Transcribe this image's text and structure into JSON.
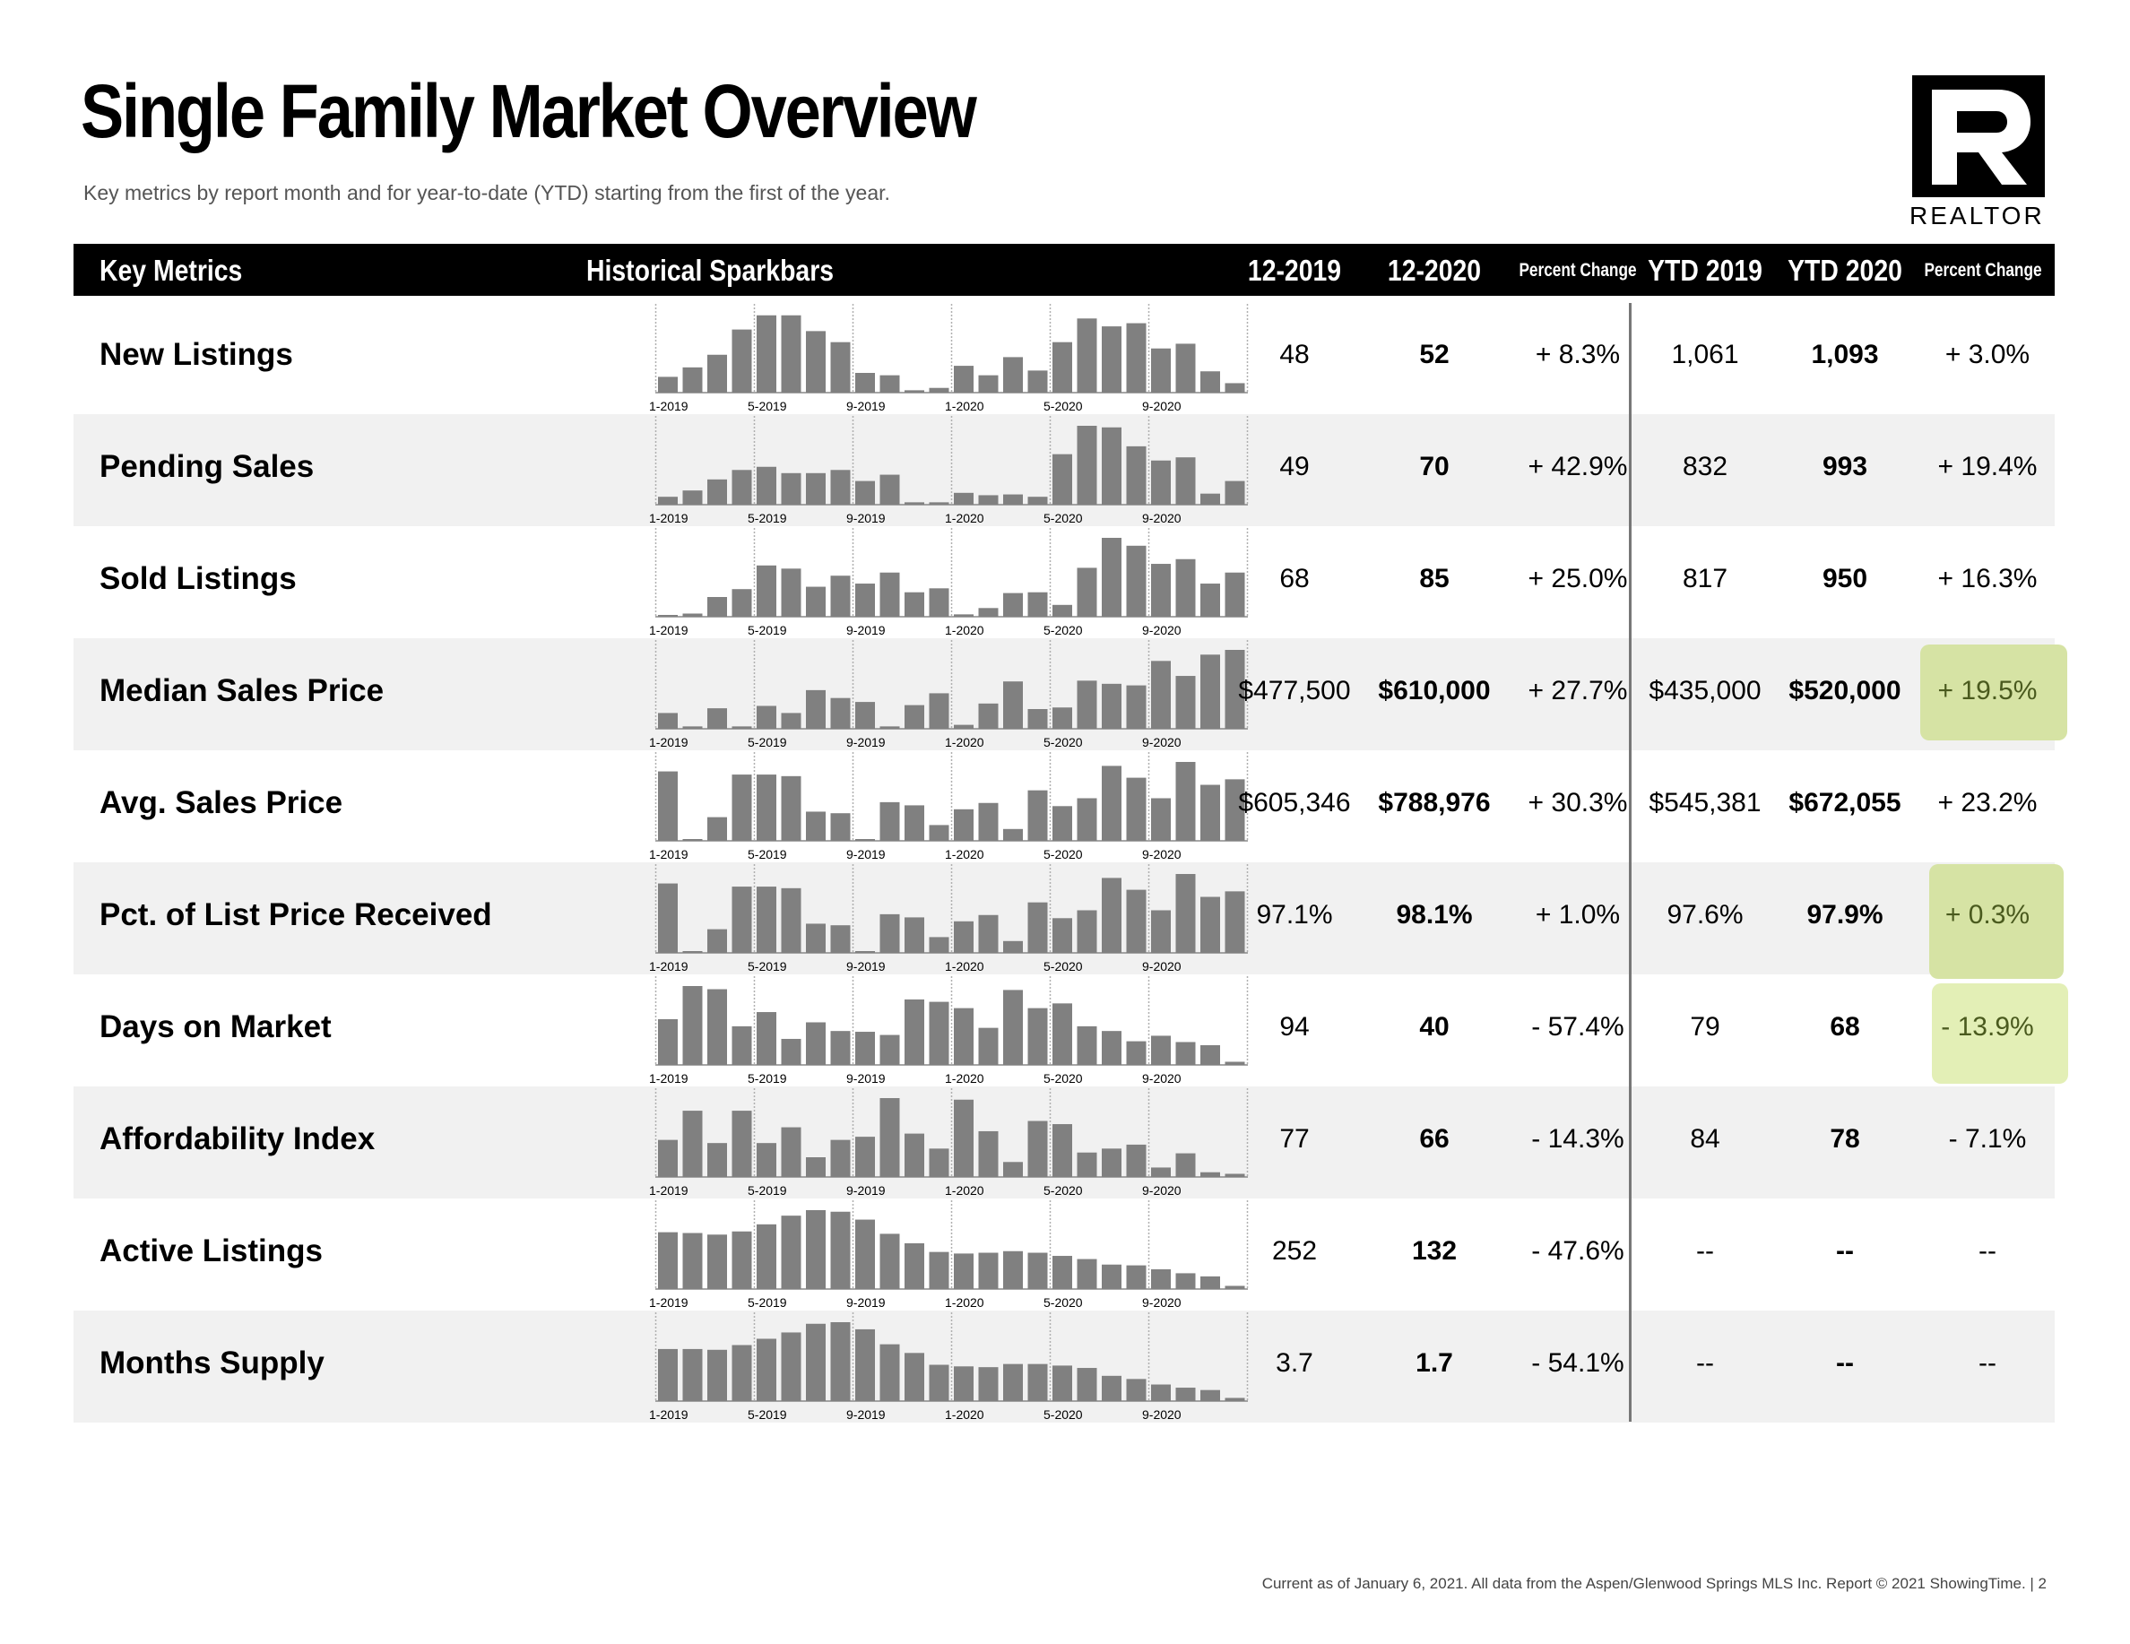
{
  "title": "Single Family Market Overview",
  "subtitle": "Key metrics by report month and for year-to-date (YTD) starting from the first of the year.",
  "logo": {
    "text": "REALTOR",
    "mark": "R"
  },
  "header": {
    "key_metrics": "Key Metrics",
    "sparkbars": "Historical Sparkbars",
    "col_prev": "12-2019",
    "col_cur": "12-2020",
    "pct_change": "Percent Change",
    "ytd_prev": "YTD 2019",
    "ytd_cur": "YTD 2020",
    "ytd_pct_change": "Percent Change"
  },
  "colors": {
    "bar": "#808080",
    "highlight_green": "#d6e3a4",
    "highlight_green_light": "#e3efb6",
    "highlight_text": "#4a5a1e"
  },
  "footer": "Current as of January 6, 2021.  All data from the Aspen/Glenwood Springs MLS Inc. Report © 2021 ShowingTime.  |  2",
  "chart_data": {
    "type": "bar",
    "x_tick_labels": [
      "1-2019",
      "5-2019",
      "9-2019",
      "1-2020",
      "5-2020",
      "9-2020"
    ],
    "months": [
      "1-2019",
      "2-2019",
      "3-2019",
      "4-2019",
      "5-2019",
      "6-2019",
      "7-2019",
      "8-2019",
      "9-2019",
      "10-2019",
      "11-2019",
      "12-2019",
      "1-2020",
      "2-2020",
      "3-2020",
      "4-2020",
      "5-2020",
      "6-2020",
      "7-2020",
      "8-2020",
      "9-2020",
      "10-2020",
      "11-2020",
      "12-2020"
    ],
    "metrics": [
      {
        "name": "New Listings",
        "values": [
          20,
          32,
          48,
          80,
          98,
          98,
          78,
          64,
          25,
          22,
          3,
          6,
          34,
          22,
          45,
          28,
          64,
          94,
          84,
          88,
          56,
          62,
          27,
          12
        ],
        "m_2019": "48",
        "m_2020": "52",
        "m_pct": "+ 8.3%",
        "ytd_2019": "1,061",
        "ytd_2020": "1,093",
        "ytd_pct": "+ 3.0%",
        "highlight": ""
      },
      {
        "name": "Pending Sales",
        "values": [
          10,
          18,
          32,
          44,
          48,
          40,
          40,
          44,
          30,
          38,
          3,
          3,
          15,
          12,
          13,
          10,
          64,
          100,
          98,
          74,
          56,
          60,
          14,
          30
        ],
        "m_2019": "49",
        "m_2020": "70",
        "m_pct": "+ 42.9%",
        "ytd_2019": "832",
        "ytd_2020": "993",
        "ytd_pct": "+ 19.4%",
        "highlight": ""
      },
      {
        "name": "Sold Listings",
        "values": [
          2,
          4,
          25,
          35,
          65,
          61,
          38,
          52,
          42,
          56,
          31,
          36,
          3,
          11,
          30,
          31,
          15,
          62,
          100,
          90,
          67,
          73,
          42,
          56
        ],
        "m_2019": "68",
        "m_2020": "85",
        "m_pct": "+ 25.0%",
        "ytd_2019": "817",
        "ytd_2020": "950",
        "ytd_pct": "+ 16.3%",
        "highlight": ""
      },
      {
        "name": "Median Sales Price",
        "values": [
          20,
          3,
          26,
          3,
          29,
          20,
          49,
          39,
          34,
          3,
          30,
          45,
          5,
          32,
          60,
          25,
          27,
          61,
          57,
          55,
          86,
          67,
          94,
          100
        ],
        "m_2019": "$477,500",
        "m_2020": "$610,000",
        "m_pct": "+ 27.7%",
        "ytd_2019": "$435,000",
        "ytd_2020": "$520,000",
        "ytd_pct": "+ 19.5%",
        "highlight": "ytd_pct"
      },
      {
        "name": "Avg. Sales Price",
        "values": [
          88,
          2,
          30,
          84,
          84,
          82,
          37,
          35,
          2,
          49,
          45,
          20,
          40,
          48,
          15,
          64,
          44,
          54,
          95,
          80,
          54,
          100,
          71,
          78
        ],
        "m_2019": "$605,346",
        "m_2020": "$788,976",
        "m_pct": "+ 30.3%",
        "ytd_2019": "$545,381",
        "ytd_2020": "$672,055",
        "ytd_pct": "+ 23.2%",
        "highlight": ""
      },
      {
        "name": "Pct. of List Price Received",
        "values": [
          88,
          2,
          30,
          84,
          84,
          82,
          37,
          35,
          2,
          49,
          45,
          20,
          40,
          48,
          15,
          64,
          44,
          54,
          95,
          80,
          54,
          100,
          71,
          78
        ],
        "m_2019": "97.1%",
        "m_2020": "98.1%",
        "m_pct": "+ 1.0%",
        "ytd_2019": "97.6%",
        "ytd_2020": "97.9%",
        "ytd_pct": "+ 0.3%",
        "highlight": "ytd_pct"
      },
      {
        "name": "Days on Market",
        "values": [
          58,
          100,
          96,
          49,
          67,
          33,
          54,
          43,
          42,
          38,
          83,
          80,
          72,
          47,
          95,
          72,
          78,
          49,
          43,
          30,
          37,
          29,
          25,
          4
        ],
        "m_2019": "94",
        "m_2020": "40",
        "m_pct": "- 57.4%",
        "ytd_2019": "79",
        "ytd_2020": "68",
        "ytd_pct": "- 13.9%",
        "highlight": "ytd_pct_light"
      },
      {
        "name": "Affordability Index",
        "values": [
          47,
          84,
          43,
          84,
          43,
          63,
          25,
          47,
          51,
          100,
          55,
          36,
          98,
          58,
          19,
          71,
          67,
          31,
          36,
          41,
          12,
          30,
          6,
          4
        ],
        "m_2019": "77",
        "m_2020": "66",
        "m_pct": "- 14.3%",
        "ytd_2019": "84",
        "ytd_2020": "78",
        "ytd_pct": "- 7.1%",
        "highlight": ""
      },
      {
        "name": "Active Listings",
        "values": [
          72,
          71,
          69,
          73,
          82,
          93,
          100,
          98,
          88,
          70,
          58,
          47,
          45,
          46,
          48,
          46,
          42,
          38,
          31,
          30,
          25,
          20,
          16,
          4
        ],
        "m_2019": "252",
        "m_2020": "132",
        "m_pct": "- 47.6%",
        "ytd_2019": "--",
        "ytd_2020": "--",
        "ytd_pct": "--",
        "highlight": ""
      },
      {
        "name": "Months Supply",
        "values": [
          66,
          66,
          65,
          71,
          79,
          87,
          98,
          100,
          91,
          72,
          61,
          46,
          44,
          43,
          47,
          47,
          45,
          42,
          32,
          28,
          21,
          17,
          14,
          4
        ],
        "m_2019": "3.7",
        "m_2020": "1.7",
        "m_pct": "- 54.1%",
        "ytd_2019": "--",
        "ytd_2020": "--",
        "ytd_pct": "--",
        "highlight": ""
      }
    ]
  }
}
